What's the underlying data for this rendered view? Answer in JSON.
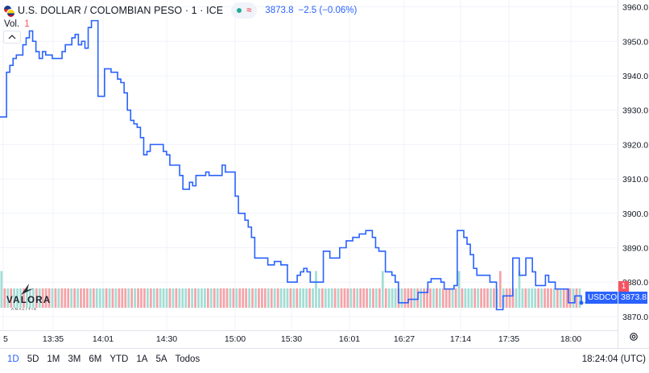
{
  "header": {
    "title": "U.S. DOLLAR / COLOMBIAN PESO · 1 · ICE",
    "status_icon": "approx-icon",
    "status_symbol": "≈",
    "last": "3873.8",
    "change": "−2.5 (−0.06%)"
  },
  "volume": {
    "label": "Vol.",
    "value": "1"
  },
  "price_tag": {
    "symbol": "USDCOP",
    "value": "3873.8"
  },
  "volume_tag": "1",
  "logo": {
    "name": "VALORA",
    "sub": "ANALITIK"
  },
  "colors": {
    "line": "#2962ff",
    "vol_up": "#a3ddd5",
    "vol_down": "#f5a3a8",
    "accent": "#2962ff"
  },
  "bottom_bar": {
    "ranges": [
      "1D",
      "5D",
      "1M",
      "3M",
      "6M",
      "YTD",
      "1A",
      "5A",
      "Todos"
    ],
    "active_range": "1D",
    "clock": "18:24:04 (UTC)"
  },
  "chart_data": {
    "type": "line",
    "series": [
      {
        "name": "USDCOP",
        "values": [
          3928,
          3928,
          3941,
          3943,
          3945,
          3946,
          3946,
          3949,
          3951,
          3953,
          3950,
          3947,
          3945,
          3947,
          3946,
          3946,
          3945,
          3945,
          3945,
          3947,
          3949,
          3949,
          3951,
          3952,
          3949,
          3950,
          3948,
          3954,
          3956,
          3956,
          3934,
          3934,
          3942,
          3942,
          3941,
          3941,
          3939,
          3938,
          3935,
          3930,
          3927,
          3926,
          3925,
          3922,
          3917,
          3918,
          3920,
          3920,
          3920,
          3920,
          3918,
          3917,
          3914,
          3914,
          3914,
          3911,
          3907,
          3907,
          3909,
          3908,
          3911,
          3911,
          3911,
          3912,
          3911,
          3911,
          3911,
          3911,
          3914,
          3912,
          3912,
          3912,
          3905,
          3900,
          3900,
          3898,
          3896,
          3893,
          3887,
          3887,
          3887,
          3887,
          3885,
          3885,
          3886,
          3886,
          3885,
          3885,
          3880,
          3880,
          3880,
          3882,
          3883,
          3884,
          3883,
          3880,
          3880,
          3880,
          3880,
          3889,
          3889,
          3887,
          3887,
          3887,
          3890,
          3890,
          3892,
          3892,
          3893,
          3893,
          3894,
          3894,
          3895,
          3895,
          3893,
          3890,
          3889,
          3889,
          3883,
          3883,
          3882,
          3880,
          3874,
          3874,
          3874,
          3875,
          3875,
          3875,
          3877,
          3877,
          3877,
          3880,
          3881,
          3881,
          3881,
          3880,
          3878,
          3878,
          3878,
          3879,
          3895,
          3895,
          3893,
          3891,
          3888,
          3884,
          3882,
          3882,
          3882,
          3882,
          3880,
          3880,
          3872,
          3872,
          3876,
          3876,
          3876,
          3887,
          3887,
          3882,
          3882,
          3887,
          3887,
          3883,
          3879,
          3879,
          3879,
          3882,
          3880,
          3880,
          3878,
          3878,
          3878,
          3878,
          3874,
          3874,
          3876,
          3876,
          3874
        ]
      }
    ],
    "x_tick_labels": [
      "5",
      "13:35",
      "14:01",
      "14:30",
      "15:00",
      "15:30",
      "16:01",
      "16:27",
      "17:14",
      "17:35",
      "18:00"
    ],
    "y_tick_labels": [
      "3960.0",
      "3950.0",
      "3940.0",
      "3930.0",
      "3920.0",
      "3910.0",
      "3900.0",
      "3890.0",
      "3880.0",
      "3870.0"
    ],
    "ylim": [
      3866,
      3962
    ],
    "volume": {
      "type": "bar",
      "values_note": "",
      "count": 183,
      "base_height": 1,
      "spike_indices": [
        0,
        99,
        120,
        144,
        157,
        163
      ],
      "spike_heights": [
        1.9,
        1.9,
        1.9,
        1.9,
        1.9,
        1.9
      ],
      "up_indices": [
        5,
        9,
        14,
        20,
        26,
        31,
        38,
        44,
        51,
        57,
        63,
        70,
        76,
        82,
        89,
        95,
        99,
        103,
        108,
        114,
        123,
        128,
        134,
        140,
        147,
        152,
        160,
        163,
        167,
        172,
        178
      ]
    }
  }
}
